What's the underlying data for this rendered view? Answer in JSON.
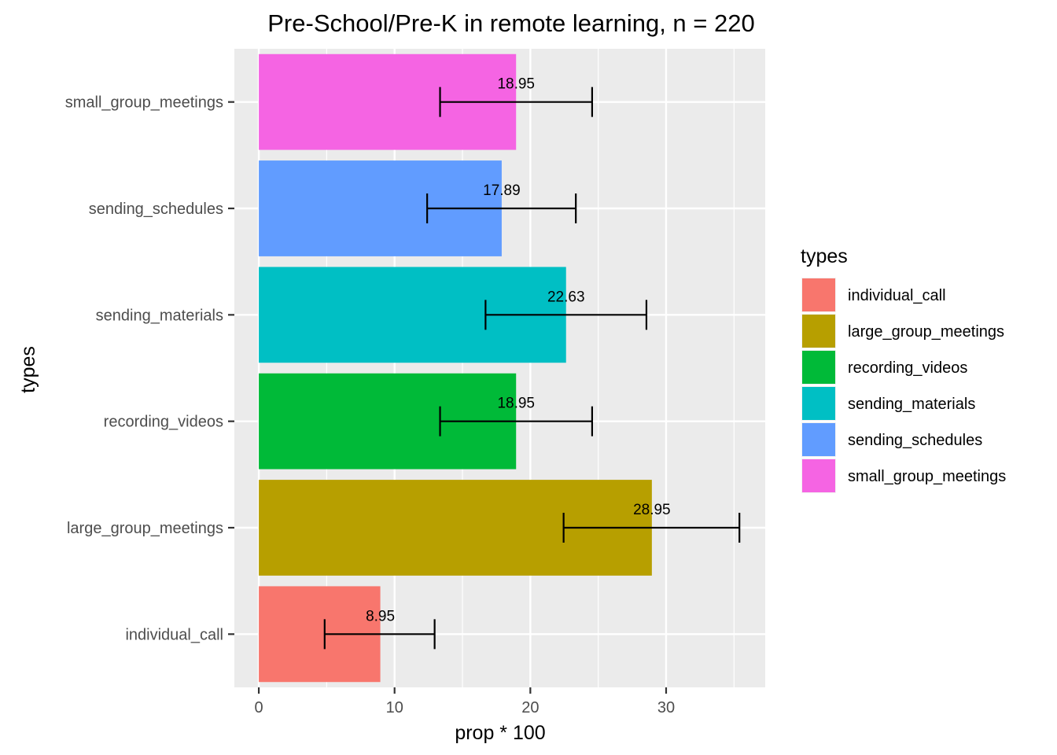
{
  "chart_data": {
    "type": "bar",
    "orientation": "horizontal",
    "title": "Pre-School/Pre-K in remote learning, n = 220",
    "xlabel": "prop * 100",
    "ylabel": "types",
    "xlim": [
      -1.8,
      37.3
    ],
    "xticks": [
      0,
      10,
      20,
      30
    ],
    "grid": true,
    "categories": [
      "individual_call",
      "large_group_meetings",
      "recording_videos",
      "sending_materials",
      "sending_schedules",
      "small_group_meetings"
    ],
    "values": [
      8.95,
      28.95,
      18.95,
      22.63,
      17.89,
      18.95
    ],
    "value_labels": [
      "8.95",
      "28.95",
      "18.95",
      "22.63",
      "17.89",
      "18.95"
    ],
    "error_low": [
      4.85,
      22.45,
      13.35,
      16.7,
      12.4,
      13.35
    ],
    "error_high": [
      12.95,
      35.4,
      24.55,
      28.55,
      23.35,
      24.55
    ],
    "colors": [
      "#F8766D",
      "#B79F00",
      "#00BA38",
      "#00BFC4",
      "#619CFF",
      "#F564E3"
    ],
    "legend": {
      "title": "types",
      "position": "right",
      "entries": [
        "individual_call",
        "large_group_meetings",
        "recording_videos",
        "sending_materials",
        "sending_schedules",
        "small_group_meetings"
      ]
    }
  }
}
